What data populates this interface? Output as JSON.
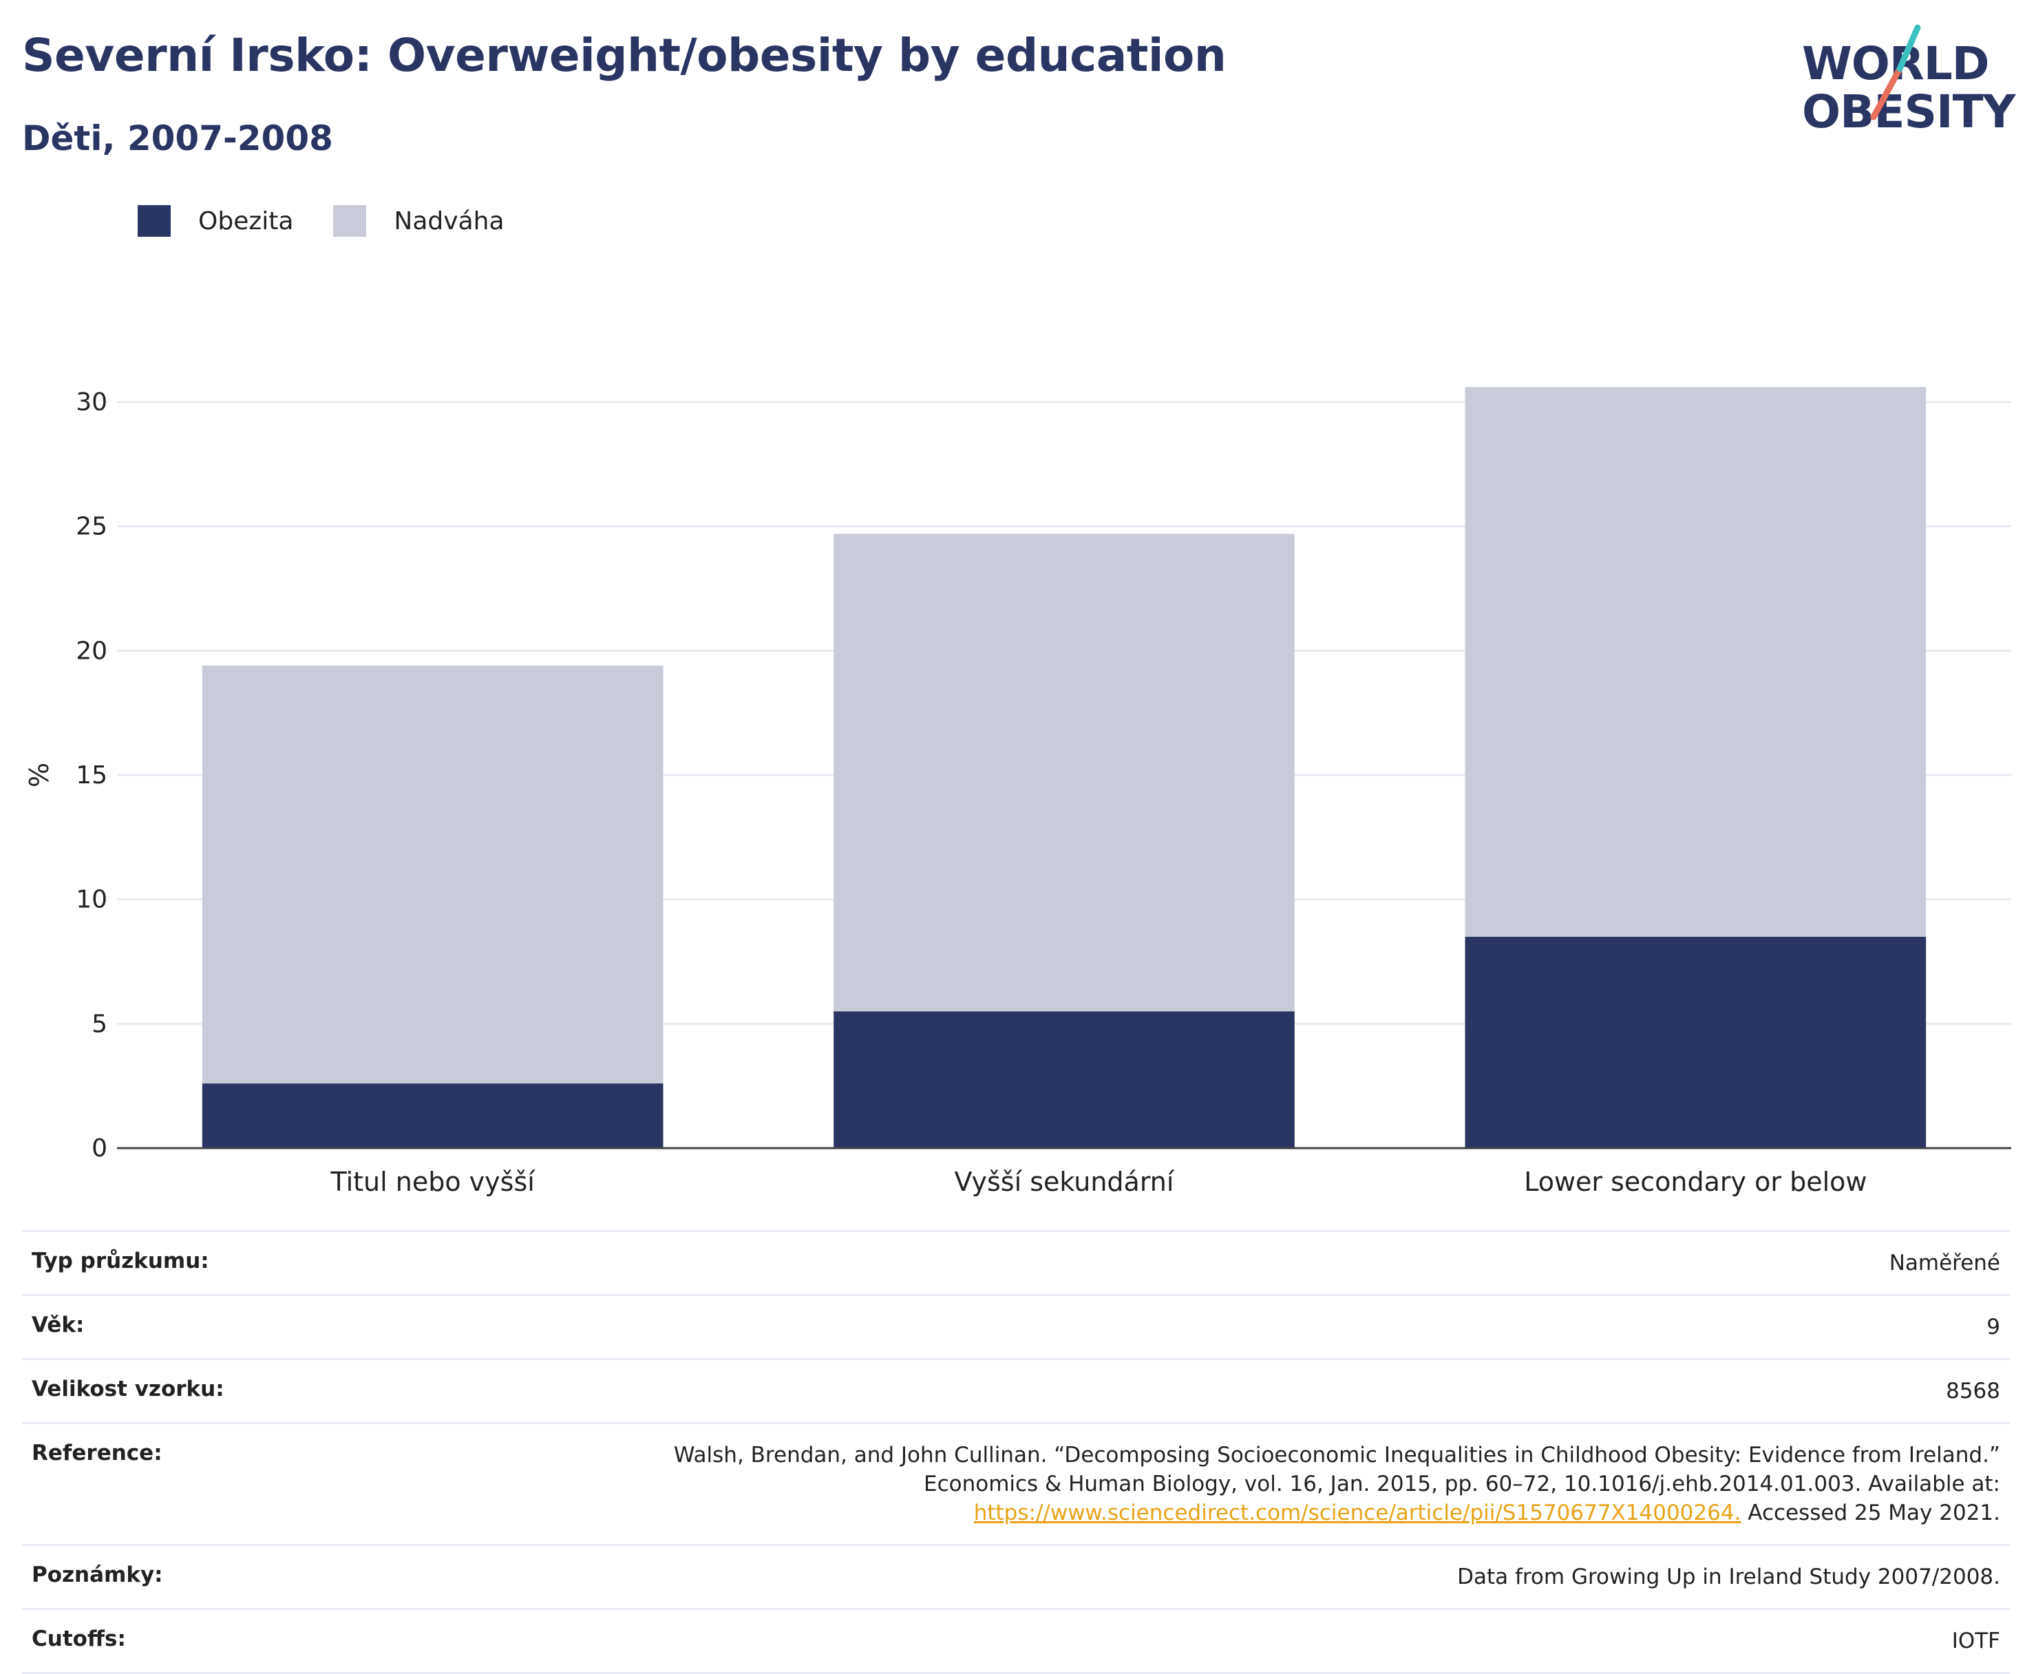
{
  "header": {
    "title": "Severní Irsko: Overweight/obesity by education",
    "subtitle": "Děti, 2007-2008"
  },
  "logo": {
    "line1": "WORLD",
    "line2": "OBESITY",
    "accent_teal": "#3cc0c0",
    "accent_coral": "#e8705a"
  },
  "colors": {
    "obesity": "#2a3564",
    "overweight": "#c9ccd8",
    "title": "#2a3564",
    "link": "#e8a317"
  },
  "chart_data": {
    "type": "bar",
    "stacked": true,
    "categories": [
      "Titul nebo vyšší",
      "Vyšší sekundární",
      "Lower secondary or below"
    ],
    "series": [
      {
        "name": "Obezita",
        "values": [
          2.6,
          5.5,
          8.5
        ]
      },
      {
        "name": "Nadváha",
        "values": [
          16.8,
          19.2,
          22.1
        ]
      }
    ],
    "totals": [
      19.4,
      24.7,
      30.6
    ],
    "ylabel": "%",
    "ylim": [
      0,
      30
    ],
    "yticks": [
      "0",
      "5",
      "10",
      "15",
      "20",
      "25",
      "30"
    ],
    "grid": true,
    "legend_position": "top-left"
  },
  "meta": {
    "survey_type": {
      "label": "Typ průzkumu:",
      "value": "Naměřené"
    },
    "age": {
      "label": "Věk:",
      "value": "9"
    },
    "sample_size": {
      "label": "Velikost vzorku:",
      "value": "8568"
    },
    "reference": {
      "label": "Reference:",
      "text": "Walsh, Brendan, and John Cullinan. “Decomposing Socioeconomic Inequalities in Childhood Obesity: Evidence from Ireland.” Economics & Human Biology, vol. 16, Jan. 2015, pp. 60–72, 10.1016/j.ehb.2014.01.003. Available at:",
      "link": "https://www.sciencedirect.com/science/article/pii/S1570677X14000264.",
      "accessed": "Accessed 25 May 2021."
    },
    "notes": {
      "label": "Poznámky:",
      "value": "Data from Growing Up in Ireland Study 2007/2008."
    },
    "cutoffs": {
      "label": "Cutoffs:",
      "value": "IOTF"
    }
  }
}
